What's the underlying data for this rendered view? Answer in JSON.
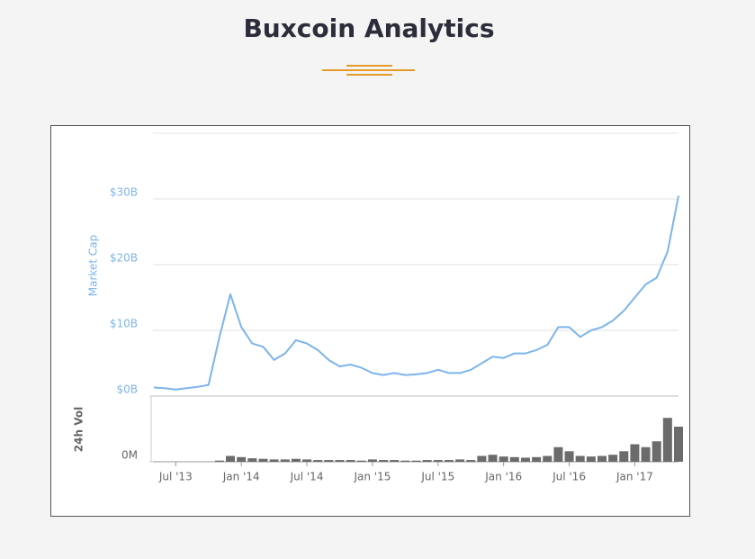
{
  "header": {
    "title": "Buxcoin Analytics"
  },
  "chart_data": [
    {
      "type": "line",
      "y_label": "Market Cap",
      "color": "#7cb5ec",
      "x": [
        "2013-05",
        "2013-06",
        "2013-07",
        "2013-08",
        "2013-09",
        "2013-10",
        "2013-11",
        "2013-12",
        "2014-01",
        "2014-02",
        "2014-03",
        "2014-04",
        "2014-05",
        "2014-06",
        "2014-07",
        "2014-08",
        "2014-09",
        "2014-10",
        "2014-11",
        "2014-12",
        "2015-01",
        "2015-02",
        "2015-03",
        "2015-04",
        "2015-05",
        "2015-06",
        "2015-07",
        "2015-08",
        "2015-09",
        "2015-10",
        "2015-11",
        "2015-12",
        "2016-01",
        "2016-02",
        "2016-03",
        "2016-04",
        "2016-05",
        "2016-06",
        "2016-07",
        "2016-08",
        "2016-09",
        "2016-10",
        "2016-11",
        "2016-12",
        "2017-01",
        "2017-02",
        "2017-03",
        "2017-04",
        "2017-05"
      ],
      "values": [
        1.3,
        1.2,
        1.0,
        1.2,
        1.4,
        1.7,
        9.0,
        15.5,
        10.5,
        8.0,
        7.5,
        5.5,
        6.5,
        8.5,
        8.0,
        7.0,
        5.5,
        4.5,
        4.8,
        4.3,
        3.5,
        3.2,
        3.5,
        3.2,
        3.3,
        3.5,
        4.0,
        3.5,
        3.5,
        4.0,
        5.0,
        6.0,
        5.8,
        6.5,
        6.5,
        7.0,
        7.8,
        10.5,
        10.5,
        9.0,
        10.0,
        10.5,
        11.5,
        13.0,
        15.0,
        17.0,
        18.0,
        22.0,
        30.5
      ],
      "xlim": [
        "2013-05",
        "2017-05"
      ],
      "ylim": [
        0,
        40
      ],
      "yticks": [
        {
          "value": 0,
          "label": "$0B"
        },
        {
          "value": 10,
          "label": "$10B"
        },
        {
          "value": 20,
          "label": "$20B"
        },
        {
          "value": 30,
          "label": "$30B"
        }
      ],
      "grid": true
    },
    {
      "type": "bar",
      "y_label": "24h Vol",
      "color": "#6b6b6b",
      "x": [
        "2013-05",
        "2013-06",
        "2013-07",
        "2013-08",
        "2013-09",
        "2013-10",
        "2013-11",
        "2013-12",
        "2014-01",
        "2014-02",
        "2014-03",
        "2014-04",
        "2014-05",
        "2014-06",
        "2014-07",
        "2014-08",
        "2014-09",
        "2014-10",
        "2014-11",
        "2014-12",
        "2015-01",
        "2015-02",
        "2015-03",
        "2015-04",
        "2015-05",
        "2015-06",
        "2015-07",
        "2015-08",
        "2015-09",
        "2015-10",
        "2015-11",
        "2015-12",
        "2016-01",
        "2016-02",
        "2016-03",
        "2016-04",
        "2016-05",
        "2016-06",
        "2016-07",
        "2016-08",
        "2016-09",
        "2016-10",
        "2016-11",
        "2016-12",
        "2017-01",
        "2017-02",
        "2017-03",
        "2017-04",
        "2017-05"
      ],
      "values": [
        0,
        0,
        0,
        0,
        0,
        0,
        2,
        10,
        8,
        6,
        5,
        4,
        4,
        5,
        4,
        3,
        3,
        3,
        3,
        2,
        4,
        3,
        3,
        2,
        2,
        3,
        3,
        3,
        4,
        3,
        10,
        12,
        9,
        8,
        7,
        8,
        10,
        25,
        18,
        10,
        9,
        10,
        12,
        18,
        30,
        25,
        35,
        75,
        60
      ],
      "xlim": [
        "2013-05",
        "2017-05"
      ],
      "ylim": [
        0,
        100
      ],
      "yticks": [
        {
          "value": 0,
          "label": "0M"
        }
      ],
      "xticks": [
        {
          "value": "2013-07",
          "label": "Jul '13"
        },
        {
          "value": "2014-01",
          "label": "Jan '14"
        },
        {
          "value": "2014-07",
          "label": "Jul '14"
        },
        {
          "value": "2015-01",
          "label": "Jan '15"
        },
        {
          "value": "2015-07",
          "label": "Jul '15"
        },
        {
          "value": "2016-01",
          "label": "Jan '16"
        },
        {
          "value": "2016-07",
          "label": "Jul '16"
        },
        {
          "value": "2017-01",
          "label": "Jan '17"
        }
      ]
    }
  ]
}
